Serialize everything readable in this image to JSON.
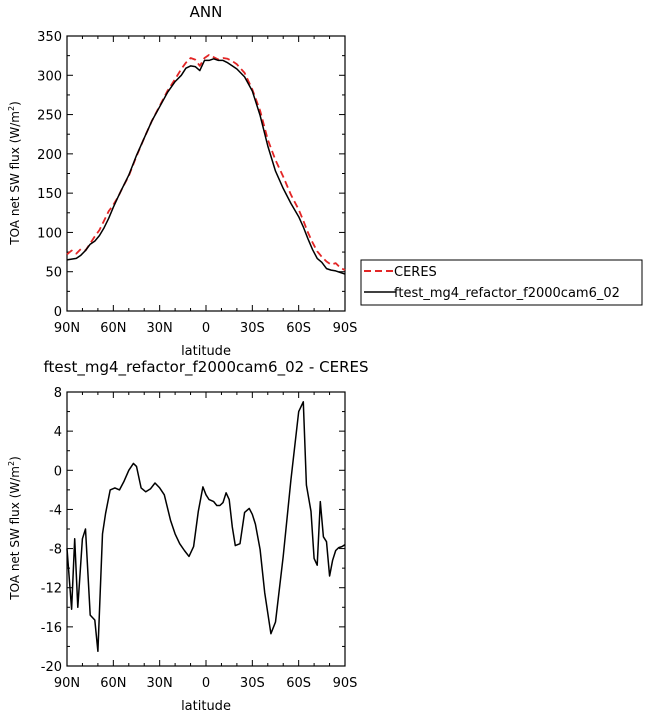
{
  "chart_data": [
    {
      "type": "line",
      "title": "ANN",
      "xlabel": "latitude",
      "ylabel": "TOA net SW flux (W/m2)",
      "xlim": [
        -90,
        90
      ],
      "ylim": [
        0,
        350
      ],
      "x_tick_values": [
        -90,
        -60,
        -30,
        0,
        30,
        60,
        90
      ],
      "x_tick_labels": [
        "90N",
        "60N",
        "30N",
        "0",
        "30S",
        "60S",
        "90S"
      ],
      "y_tick_values": [
        0,
        50,
        100,
        150,
        200,
        250,
        300,
        350
      ],
      "y_tick_labels": [
        "0",
        "50",
        "100",
        "150",
        "200",
        "250",
        "300",
        "350"
      ],
      "legend_position": "right",
      "series": [
        {
          "name": "CERES",
          "color": "#e32626",
          "dash": "dashed",
          "x": [
            -90,
            -87,
            -84,
            -81,
            -78,
            -75,
            -72,
            -69,
            -66,
            -63,
            -60,
            -57,
            -54,
            -50,
            -45,
            -40,
            -35,
            -30,
            -25,
            -20,
            -16,
            -13,
            -10,
            -7,
            -4,
            -1,
            2,
            5,
            8,
            11,
            14,
            17,
            20,
            25,
            30,
            35,
            40,
            45,
            50,
            55,
            60,
            63,
            66,
            69,
            72,
            75,
            78,
            81,
            84,
            87,
            90
          ],
          "values": [
            72,
            77,
            73,
            79,
            77,
            86,
            95,
            103,
            115,
            127,
            135,
            145,
            157,
            172,
            197,
            220,
            242,
            261,
            280,
            295,
            308,
            316,
            322,
            320,
            312,
            322,
            326,
            323,
            320,
            322,
            321,
            318,
            314,
            303,
            282,
            255,
            218,
            192,
            171,
            148,
            129,
            115,
            100,
            87,
            76,
            69,
            63,
            59,
            61,
            55,
            52
          ]
        },
        {
          "name": "ftest_mg4_refactor_f2000cam6_02",
          "color": "#000000",
          "dash": "solid",
          "x": [
            -90,
            -87,
            -84,
            -81,
            -78,
            -75,
            -72,
            -69,
            -66,
            -63,
            -60,
            -57,
            -54,
            -50,
            -45,
            -40,
            -35,
            -30,
            -25,
            -20,
            -16,
            -13,
            -10,
            -7,
            -4,
            -1,
            2,
            5,
            8,
            11,
            14,
            17,
            20,
            25,
            30,
            35,
            40,
            45,
            50,
            55,
            60,
            63,
            66,
            69,
            72,
            75,
            78,
            81,
            84,
            87,
            90
          ],
          "values": [
            65,
            66,
            67,
            71,
            77,
            85,
            89,
            96,
            106,
            118,
            132,
            145,
            157,
            173,
            198,
            220,
            242,
            260,
            278,
            292,
            300,
            309,
            312,
            311,
            306,
            319,
            319,
            321,
            319,
            319,
            316,
            312,
            308,
            298,
            280,
            249,
            210,
            178,
            156,
            137,
            120,
            107,
            92,
            78,
            67,
            62,
            54,
            52,
            51,
            49,
            47
          ]
        }
      ]
    },
    {
      "type": "line",
      "title": "ftest_mg4_refactor_f2000cam6_02 - CERES",
      "xlabel": "latitude",
      "ylabel": "TOA net SW flux (W/m2)",
      "xlim": [
        -90,
        90
      ],
      "ylim": [
        -20,
        8
      ],
      "x_tick_values": [
        -90,
        -60,
        -30,
        0,
        30,
        60,
        90
      ],
      "x_tick_labels": [
        "90N",
        "60N",
        "30N",
        "0",
        "30S",
        "60S",
        "90S"
      ],
      "y_tick_values": [
        -20,
        -16,
        -12,
        -8,
        -4,
        0,
        4,
        8
      ],
      "y_tick_labels": [
        "-20",
        "-16",
        "-12",
        "-8",
        "-4",
        "0",
        "4",
        "8"
      ],
      "series": [
        {
          "color": "#000000",
          "dash": "solid",
          "x": [
            -90,
            -87,
            -85,
            -83,
            -80,
            -78,
            -75,
            -72,
            -70,
            -67,
            -65,
            -62,
            -59,
            -56,
            -53,
            -50,
            -47,
            -45,
            -42,
            -39,
            -36,
            -33,
            -30,
            -27,
            -23,
            -20,
            -17,
            -14,
            -11,
            -8,
            -5,
            -2,
            0,
            2,
            5,
            7,
            9,
            11,
            13,
            15,
            17,
            19,
            22,
            25,
            28,
            30,
            32,
            35,
            38,
            42,
            45,
            50,
            55,
            60,
            63,
            65,
            68,
            70,
            72,
            74,
            76,
            78,
            80,
            82,
            84,
            86,
            88,
            90
          ],
          "values": [
            -8,
            -14.2,
            -7,
            -14,
            -7,
            -6,
            -14.8,
            -15.3,
            -18.5,
            -6.5,
            -4.4,
            -2,
            -1.8,
            -2,
            -1.1,
            0,
            0.7,
            0.4,
            -1.8,
            -2.2,
            -1.9,
            -1.3,
            -1.8,
            -2.5,
            -5.1,
            -6.5,
            -7.5,
            -8.2,
            -8.8,
            -7.8,
            -4.2,
            -1.7,
            -2.5,
            -3,
            -3.2,
            -3.6,
            -3.6,
            -3.3,
            -2.3,
            -3,
            -5.8,
            -7.7,
            -7.5,
            -4.3,
            -3.9,
            -4.5,
            -5.5,
            -8.1,
            -12.5,
            -16.7,
            -15.5,
            -8.8,
            -1,
            6,
            7,
            -1.5,
            -4.2,
            -9,
            -9.7,
            -3.2,
            -6.8,
            -7.3,
            -10.8,
            -9.2,
            -8.2,
            -7.9,
            -7.8,
            -7.6
          ]
        }
      ]
    }
  ]
}
